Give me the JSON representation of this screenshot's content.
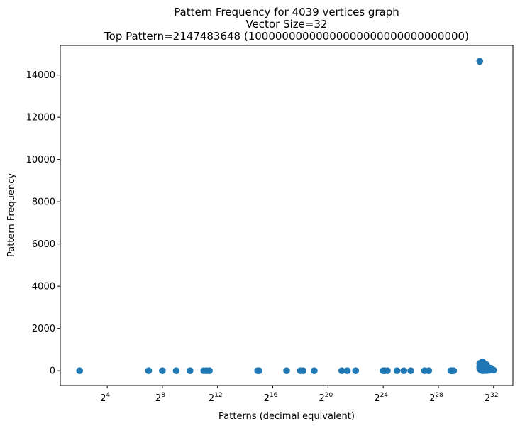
{
  "chart_data": {
    "type": "scatter",
    "title_lines": [
      "Pattern Frequency for 4039 vertices graph",
      "Vector Size=32",
      "Top Pattern=2147483648 (10000000000000000000000000000000)"
    ],
    "xlabel": "Patterns (decimal equivalent)",
    "ylabel": "Pattern Frequency",
    "x_scale": "log2",
    "xlim_log2": [
      0.6,
      33.4
    ],
    "ylim": [
      -700,
      15400
    ],
    "x_ticks": [
      {
        "base": "2",
        "exp": "4",
        "log2": 4
      },
      {
        "base": "2",
        "exp": "8",
        "log2": 8
      },
      {
        "base": "2",
        "exp": "12",
        "log2": 12
      },
      {
        "base": "2",
        "exp": "16",
        "log2": 16
      },
      {
        "base": "2",
        "exp": "20",
        "log2": 20
      },
      {
        "base": "2",
        "exp": "24",
        "log2": 24
      },
      {
        "base": "2",
        "exp": "28",
        "log2": 28
      },
      {
        "base": "2",
        "exp": "32",
        "log2": 32
      }
    ],
    "y_ticks": [
      "0",
      "2000",
      "4000",
      "6000",
      "8000",
      "10000",
      "12000",
      "14000"
    ],
    "y_tick_values": [
      0,
      2000,
      4000,
      6000,
      8000,
      10000,
      12000,
      14000
    ],
    "grid": false,
    "marker_color": "#1f77b4",
    "points_log2_x": [
      2,
      7,
      8,
      9,
      10,
      11,
      11.2,
      11.4,
      14.9,
      15,
      17,
      18,
      18.2,
      19,
      21,
      21.4,
      22,
      24,
      24.1,
      24.3,
      25,
      25.5,
      26,
      27,
      27.3,
      28.9,
      29,
      29.1,
      31,
      31,
      31,
      31,
      31.05,
      31.1,
      31.2,
      31.3,
      31.4,
      31.5,
      31.6,
      31.7,
      31.8,
      31.9,
      32,
      31.2,
      31.5,
      31.3,
      31.1,
      31.6
    ],
    "points_y": [
      0,
      0,
      0,
      0,
      0,
      0,
      0,
      0,
      0,
      0,
      0,
      0,
      0,
      0,
      0,
      0,
      0,
      0,
      0,
      0,
      0,
      0,
      0,
      0,
      0,
      0,
      0,
      0,
      14650,
      350,
      200,
      100,
      50,
      80,
      420,
      150,
      100,
      280,
      60,
      20,
      120,
      40,
      30,
      0,
      10,
      5,
      30,
      20
    ]
  }
}
